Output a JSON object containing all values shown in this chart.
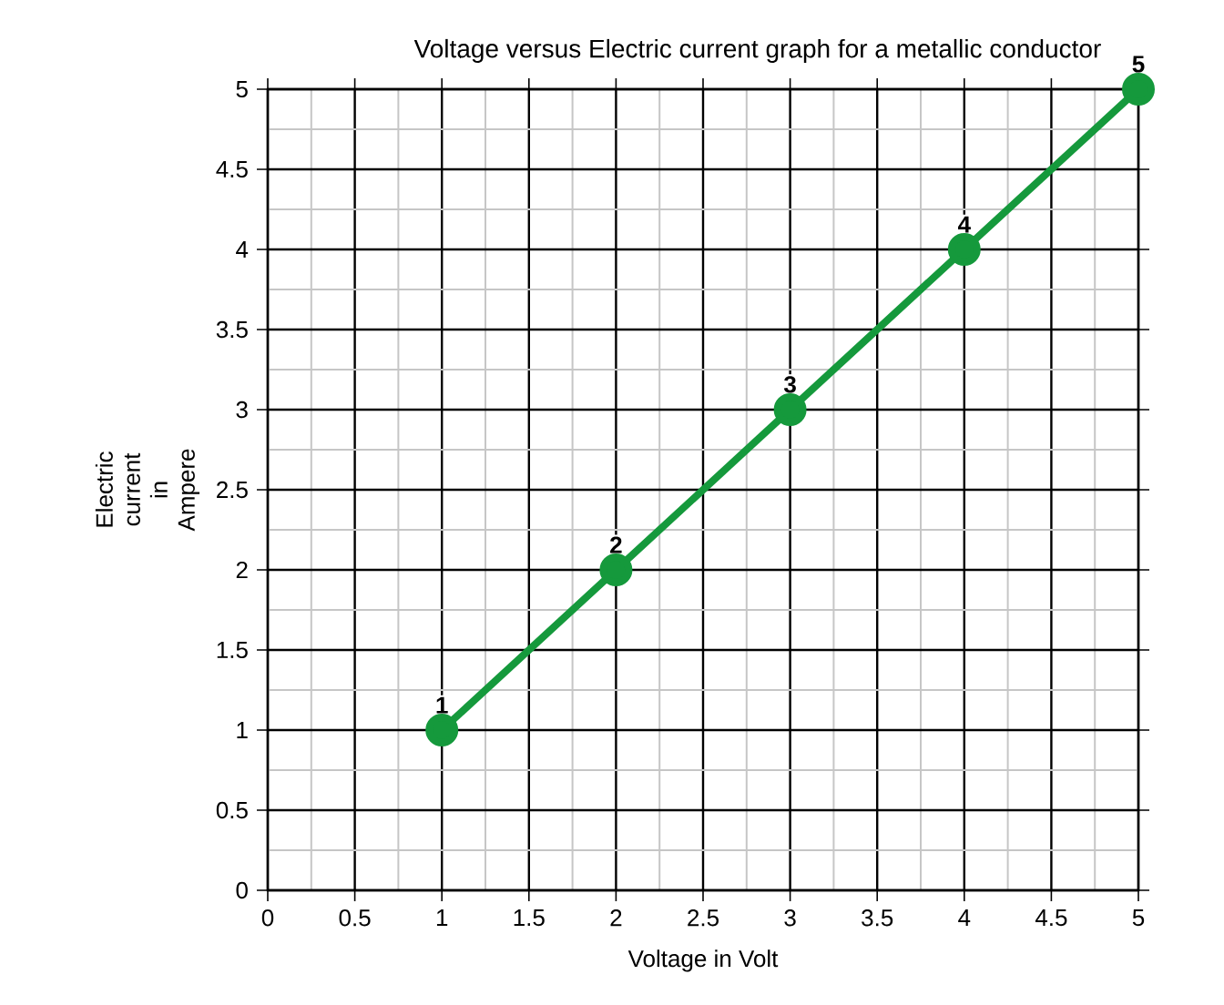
{
  "chart_data": {
    "type": "line",
    "title": "Voltage versus Electric current graph for a metallic conductor",
    "xlabel": "Voltage in Volt",
    "ylabel": "Electric current in Ampere",
    "x": [
      1,
      2,
      3,
      4,
      5
    ],
    "series": [
      {
        "color": "#15993c",
        "values": [
          1,
          2,
          3,
          4,
          5
        ]
      }
    ],
    "xlim": [
      0,
      5
    ],
    "ylim": [
      0,
      5
    ],
    "xticks": [
      0,
      0.5,
      1,
      1.5,
      2,
      2.5,
      3,
      3.5,
      4,
      4.5,
      5
    ],
    "yticks": [
      0,
      0.5,
      1,
      1.5,
      2,
      2.5,
      3,
      3.5,
      4,
      4.5,
      5
    ],
    "grid": true,
    "marker": "circle",
    "line_style": "solid",
    "data_labels": true
  }
}
